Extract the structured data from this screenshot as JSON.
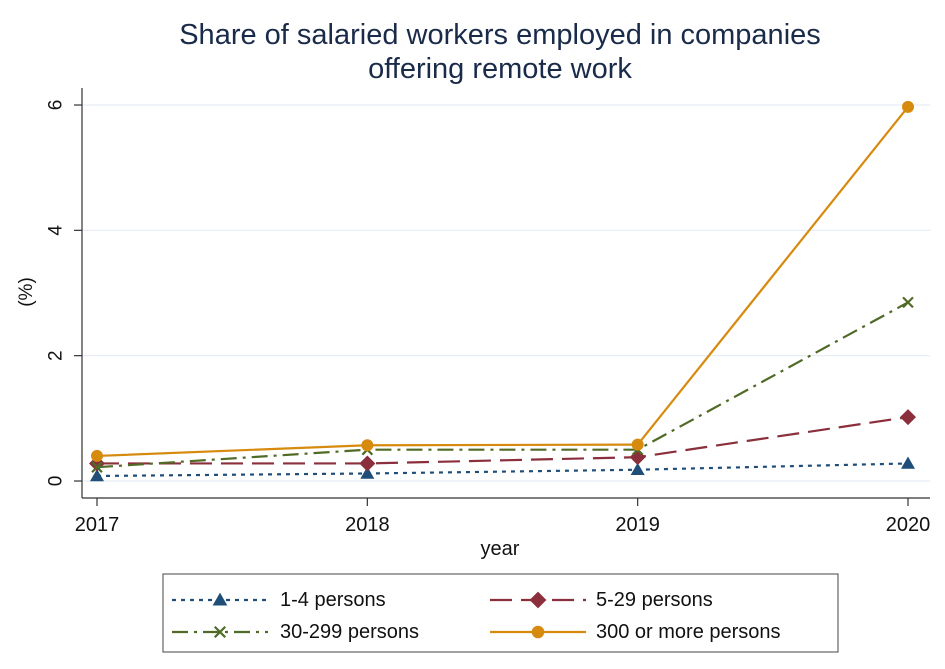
{
  "chart_data": {
    "type": "line",
    "title_lines": [
      "Share of salaried workers employed in companies",
      "offering remote work"
    ],
    "xlabel": "year",
    "ylabel": "(%)",
    "categories": [
      "2017",
      "2018",
      "2019",
      "2020"
    ],
    "ylim": [
      0,
      6
    ],
    "yticks": [
      "0",
      "2",
      "4",
      "6"
    ],
    "grid": "horizontal",
    "legend_position": "bottom",
    "series": [
      {
        "name": "1-4 persons",
        "values": [
          0.08,
          0.12,
          0.18,
          0.28
        ],
        "color": "#1f4e79",
        "dash": "4 5",
        "marker": "triangle"
      },
      {
        "name": "5-29 persons",
        "values": [
          0.28,
          0.28,
          0.38,
          1.02
        ],
        "color": "#8b2f3c",
        "dash": "22 9",
        "marker": "diamond"
      },
      {
        "name": "30-299 persons",
        "values": [
          0.22,
          0.5,
          0.5,
          2.85
        ],
        "color": "#4f6b26",
        "dash": "16 6 3 6",
        "marker": "x"
      },
      {
        "name": "300 or more persons",
        "values": [
          0.4,
          0.57,
          0.58,
          5.97
        ],
        "color": "#d68a0e",
        "dash": "",
        "marker": "circle"
      }
    ]
  }
}
